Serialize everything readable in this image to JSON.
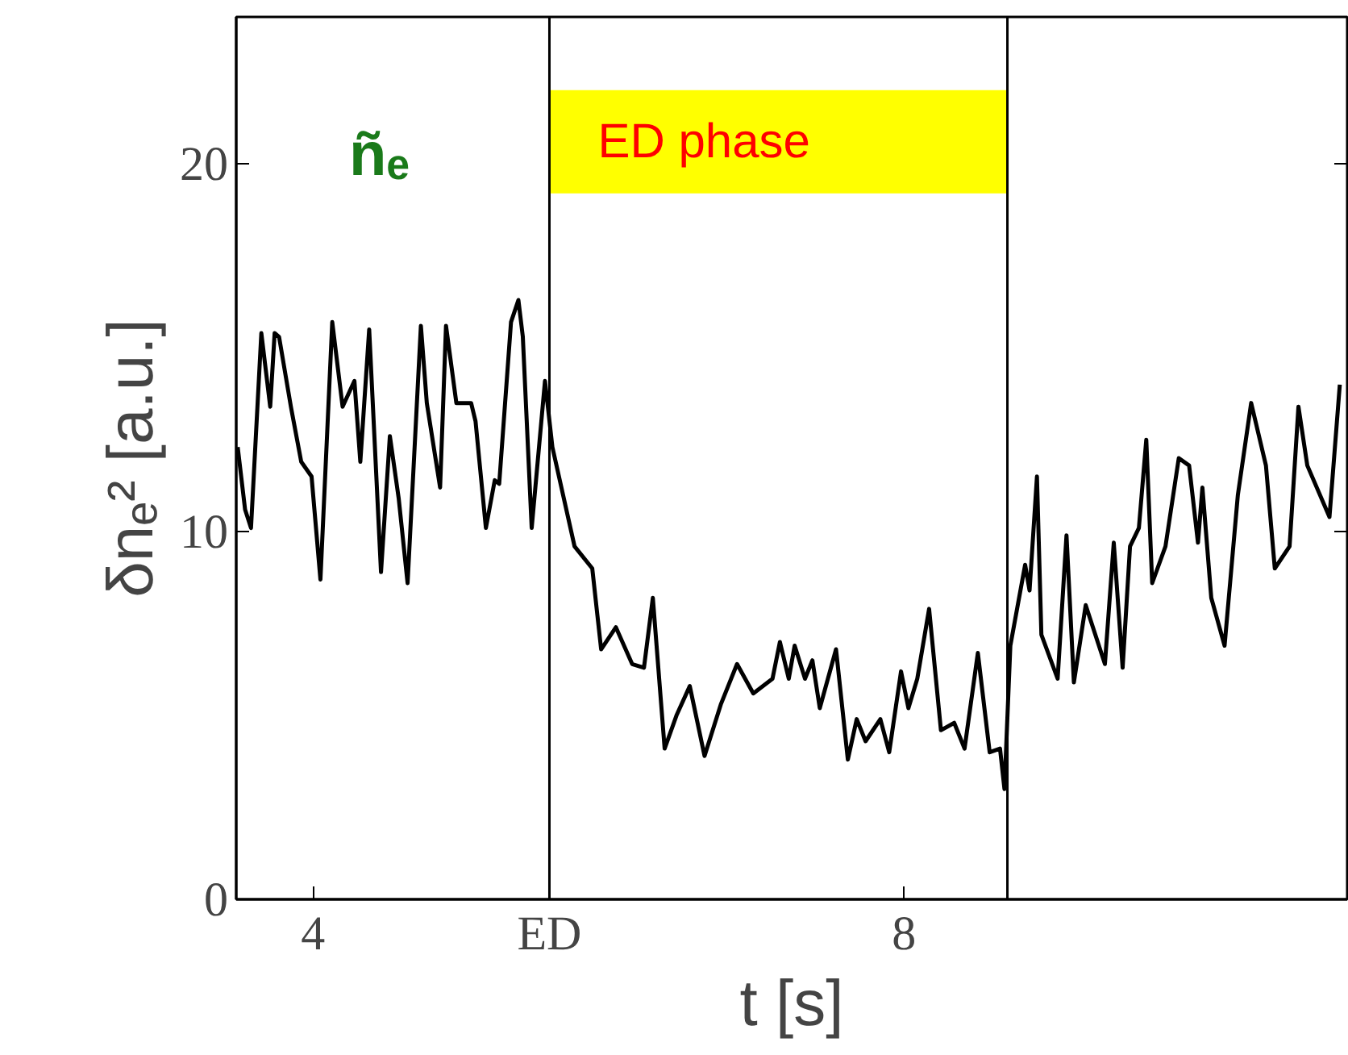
{
  "chart_data": {
    "type": "line",
    "xlabel": "t [s]",
    "ylabel": "δnₑ² [a.u.]",
    "xlim": [
      3.48,
      11.0
    ],
    "ylim": [
      0,
      24
    ],
    "xticks": [
      4,
      {
        "value": 5.6,
        "label": "ED"
      },
      8
    ],
    "yticks": [
      0,
      10,
      20
    ],
    "grid": false,
    "annotations": [
      "ñₑ"
    ],
    "ref_lines": [
      {
        "axis": "x",
        "value": 5.6,
        "color": "#000000"
      },
      {
        "axis": "x",
        "value": 8.7,
        "color": "#000000"
      }
    ],
    "bands": [
      {
        "axis": "x",
        "from": 5.6,
        "to": 8.7,
        "label": "ED phase",
        "color": "#ffff00"
      }
    ],
    "series": [
      {
        "color": "#000000",
        "x": [
          3.49,
          3.54,
          3.58,
          3.65,
          3.71,
          3.74,
          3.77,
          3.85,
          3.92,
          3.99,
          4.05,
          4.13,
          4.2,
          4.28,
          4.32,
          4.38,
          4.46,
          4.52,
          4.58,
          4.64,
          4.73,
          4.77,
          4.86,
          4.9,
          4.97,
          5.07,
          5.1,
          5.17,
          5.23,
          5.26,
          5.34,
          5.39,
          5.42,
          5.48,
          5.57,
          5.62,
          5.77,
          5.89,
          5.95,
          6.05,
          6.16,
          6.24,
          6.3,
          6.38,
          6.46,
          6.55,
          6.65,
          6.76,
          6.87,
          6.98,
          7.11,
          7.16,
          7.22,
          7.26,
          7.33,
          7.38,
          7.43,
          7.54,
          7.62,
          7.68,
          7.74,
          7.84,
          7.9,
          7.98,
          8.03,
          8.09,
          8.17,
          8.25,
          8.34,
          8.41,
          8.5,
          8.58,
          8.65,
          8.68,
          8.72,
          8.82,
          8.85,
          8.9,
          8.93,
          9.04,
          9.1,
          9.15,
          9.23,
          9.36,
          9.42,
          9.48,
          9.53,
          9.59,
          9.64,
          9.68,
          9.77,
          9.86,
          9.93,
          9.99,
          10.02,
          10.08,
          10.17,
          10.26,
          10.35,
          10.45,
          10.51,
          10.61,
          10.67,
          10.73,
          10.88,
          10.95
        ],
        "values": [
          12.3,
          10.6,
          10.1,
          15.4,
          13.4,
          15.4,
          15.3,
          13.4,
          11.9,
          11.5,
          8.7,
          15.7,
          13.4,
          14.1,
          11.9,
          15.5,
          8.9,
          12.6,
          10.9,
          8.6,
          15.6,
          13.5,
          11.2,
          15.6,
          13.5,
          13.5,
          13.0,
          10.1,
          11.4,
          11.3,
          15.7,
          16.3,
          15.3,
          10.1,
          14.1,
          12.3,
          9.6,
          9.0,
          6.8,
          7.4,
          6.4,
          6.3,
          8.2,
          4.1,
          5.0,
          5.8,
          3.9,
          5.3,
          6.4,
          5.6,
          6.0,
          7.0,
          6.0,
          6.9,
          6.0,
          6.5,
          5.2,
          6.8,
          3.8,
          4.9,
          4.3,
          4.9,
          4.0,
          6.2,
          5.2,
          6.0,
          7.9,
          4.6,
          4.8,
          4.1,
          6.7,
          4.0,
          4.1,
          3.0,
          6.9,
          9.1,
          8.4,
          11.5,
          7.2,
          6.0,
          9.9,
          5.9,
          8.0,
          6.4,
          9.7,
          6.3,
          9.6,
          10.1,
          12.5,
          8.6,
          9.6,
          12.0,
          11.8,
          9.7,
          11.2,
          8.2,
          6.9,
          11.0,
          13.5,
          11.8,
          9.0,
          9.6,
          13.4,
          11.8,
          10.4,
          14.0
        ]
      }
    ]
  }
}
